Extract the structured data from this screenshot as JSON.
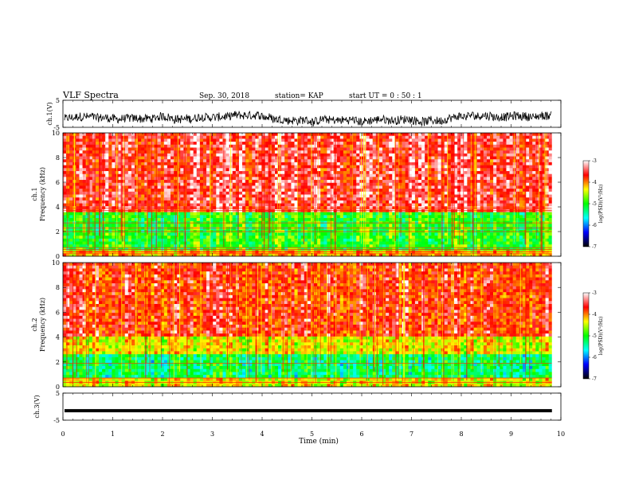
{
  "header": {
    "title": "VLF Spectra",
    "date": "Sep. 30, 2018",
    "station": "station= KAP",
    "start": "start  UT =   0 : 50 : 1"
  },
  "colorbar": {
    "label": "log(PSD)(V²/Hz)",
    "ticks": [
      "-3",
      "-4",
      "-5",
      "-6",
      "-7"
    ],
    "colors": [
      "#ffffff",
      "#ff0000",
      "#ffff00",
      "#00ff00",
      "#00ffff",
      "#0000ff",
      "#000000"
    ]
  },
  "chart_data": [
    {
      "type": "line",
      "ylabel": "ch.1(V)",
      "ylim": [
        -5,
        5
      ],
      "yticks": [
        "5",
        "-5"
      ],
      "xlim": [
        0,
        10
      ],
      "note": "dense noisy waveform around -2 V"
    },
    {
      "type": "heatmap",
      "ylabel": "ch.1\nFrequency (kHz)",
      "ylim": [
        0,
        10
      ],
      "yticks": [
        "10",
        "8",
        "6",
        "4",
        "2",
        "0"
      ],
      "xlim": [
        0,
        10
      ],
      "bands": [
        {
          "from": 0.0,
          "to": 0.5,
          "level": -4.2
        },
        {
          "from": 0.5,
          "to": 3.5,
          "level": -5.2
        },
        {
          "from": 3.5,
          "to": 10.0,
          "level": -3.5
        }
      ],
      "lines_khz": [
        0.2,
        0.35,
        0.55,
        0.7,
        2.0,
        2.3,
        2.7,
        3.7,
        3.9
      ]
    },
    {
      "type": "heatmap",
      "ylabel": "ch.2\nFrequency (kHz)",
      "ylim": [
        0,
        10
      ],
      "yticks": [
        "10",
        "8",
        "6",
        "4",
        "2",
        "0"
      ],
      "xlim": [
        0,
        10
      ],
      "bands": [
        {
          "from": 0.0,
          "to": 0.6,
          "level": -4.5
        },
        {
          "from": 0.6,
          "to": 2.5,
          "level": -5.5
        },
        {
          "from": 2.5,
          "to": 4.0,
          "level": -4.5
        },
        {
          "from": 4.0,
          "to": 10.0,
          "level": -3.7
        }
      ],
      "lines_khz": [
        0.35,
        0.7,
        1.9
      ]
    },
    {
      "type": "line",
      "ylabel": "ch.3(V)",
      "ylim": [
        -5,
        5
      ],
      "yticks": [
        "5",
        "-5"
      ],
      "xlim": [
        0,
        10
      ],
      "constant_value": -1.5
    }
  ],
  "xaxis": {
    "label": "Time (min)",
    "ticks": [
      "0",
      "1",
      "2",
      "3",
      "4",
      "5",
      "6",
      "7",
      "8",
      "9",
      "10"
    ],
    "data_end_min": 9.82
  }
}
